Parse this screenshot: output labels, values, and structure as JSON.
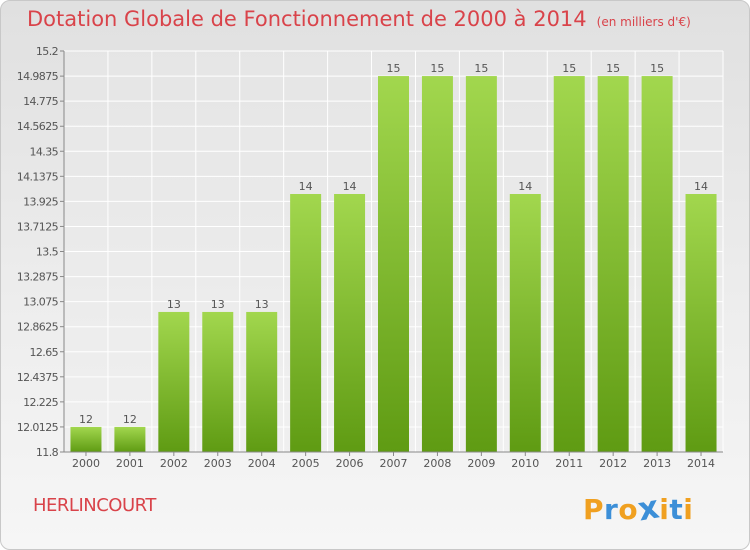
{
  "title": "Dotation Globale de Fonctionnement de 2000 à 2014",
  "subtitle": "(en milliers d'€)",
  "town": "HERLINCOURT",
  "logo": {
    "letters": [
      "P",
      "r",
      "o",
      "x",
      "i",
      "t",
      "i"
    ],
    "colors": [
      "#f0a020",
      "#3c8fd8",
      "#f0a020",
      "#3c8fd8",
      "#f0a020",
      "#3c8fd8",
      "#f0a020"
    ]
  },
  "chart_data": {
    "type": "bar",
    "categories": [
      "2000",
      "2001",
      "2002",
      "2003",
      "2004",
      "2005",
      "2006",
      "2007",
      "2008",
      "2009",
      "2010",
      "2011",
      "2012",
      "2013",
      "2014"
    ],
    "values": [
      12,
      12,
      13,
      13,
      13,
      14,
      14,
      15,
      15,
      15,
      14,
      15,
      15,
      15,
      14
    ],
    "bar_tops": [
      12.0125,
      12.0125,
      12.9875,
      12.9875,
      12.9875,
      13.9875,
      13.9875,
      14.9875,
      14.9875,
      14.9875,
      13.9875,
      14.9875,
      14.9875,
      14.9875,
      13.9875
    ],
    "data_labels": [
      "12",
      "12",
      "13",
      "13",
      "13",
      "14",
      "14",
      "15",
      "15",
      "15",
      "14",
      "15",
      "15",
      "15",
      "14"
    ],
    "yticks": [
      "15.2",
      "14.9875",
      "14.775",
      "14.5625",
      "14.35",
      "14.1375",
      "13.925",
      "13.7125",
      "13.5",
      "13.2875",
      "13.075",
      "12.8625",
      "12.65",
      "12.4375",
      "12.225",
      "12.0125",
      "11.8"
    ],
    "ylim": [
      11.8,
      15.2
    ],
    "bar_color": "#7cbd2c",
    "grid": true
  }
}
